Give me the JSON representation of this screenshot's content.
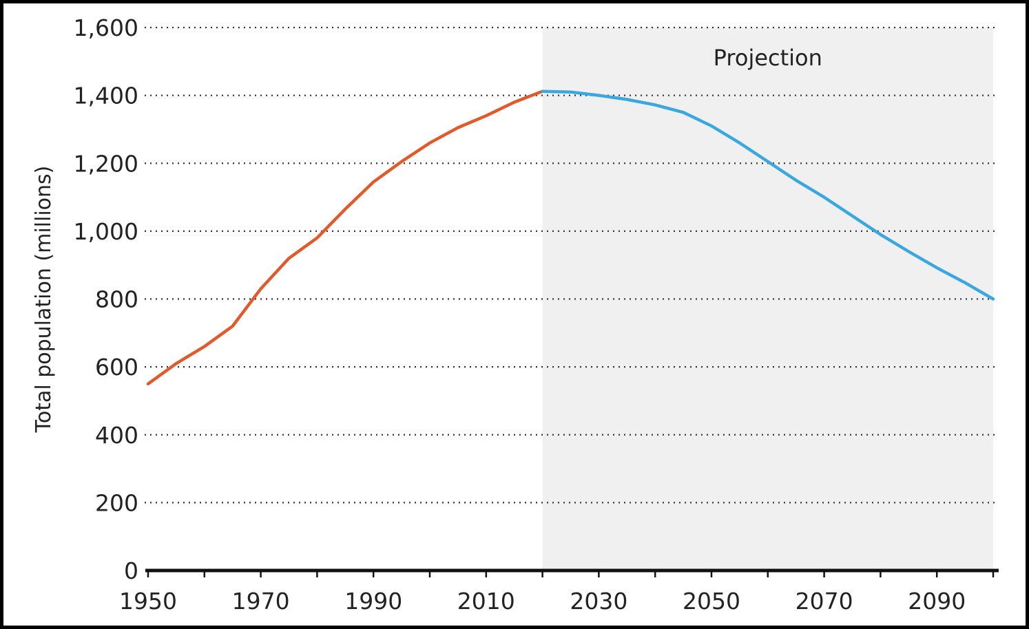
{
  "chart_data": {
    "type": "line",
    "title": "",
    "xlabel": "",
    "ylabel": "Total population (millions)",
    "xlim": [
      1950,
      2100
    ],
    "ylim": [
      0,
      1600
    ],
    "x_ticks": [
      1950,
      1970,
      1990,
      2010,
      2030,
      2050,
      2070,
      2090
    ],
    "x_tick_labels": [
      "1950",
      "1970",
      "1990",
      "2010",
      "2030",
      "2050",
      "2070",
      "2090"
    ],
    "y_ticks": [
      0,
      200,
      400,
      600,
      800,
      1000,
      1200,
      1400,
      1600
    ],
    "y_tick_labels": [
      "0",
      "200",
      "400",
      "600",
      "800",
      "1,000",
      "1,200",
      "1,400",
      "1,600"
    ],
    "grid": "horizontal dotted",
    "legend": "none",
    "projection_region": {
      "label": "Projection",
      "x_start": 2020,
      "x_end": 2100,
      "color": "#f0f0f0"
    },
    "series": [
      {
        "role": "historical",
        "color": "#e05a2b",
        "x": [
          1950,
          1955,
          1960,
          1965,
          1970,
          1975,
          1980,
          1985,
          1990,
          1995,
          2000,
          2005,
          2010,
          2015,
          2020
        ],
        "values": [
          550,
          610,
          660,
          720,
          830,
          920,
          980,
          1065,
          1145,
          1205,
          1260,
          1305,
          1340,
          1380,
          1412
        ]
      },
      {
        "role": "projection",
        "color": "#3aa8de",
        "x": [
          2020,
          2025,
          2030,
          2035,
          2040,
          2045,
          2050,
          2055,
          2060,
          2065,
          2070,
          2075,
          2080,
          2085,
          2090,
          2095,
          2100
        ],
        "values": [
          1412,
          1410,
          1400,
          1388,
          1372,
          1350,
          1310,
          1260,
          1205,
          1150,
          1100,
          1045,
          990,
          940,
          892,
          848,
          800
        ]
      }
    ]
  }
}
